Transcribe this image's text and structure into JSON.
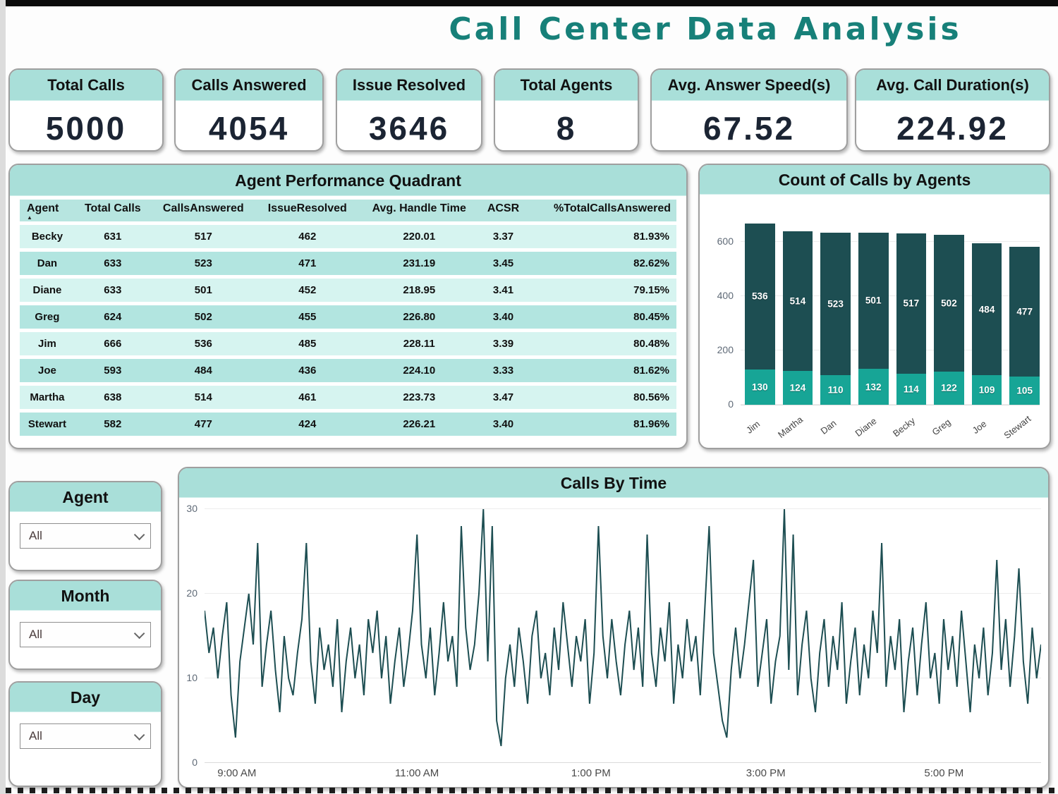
{
  "title": "Call Center Data Analysis",
  "kpis": [
    {
      "label": "Total Calls",
      "value": "5000"
    },
    {
      "label": "Calls Answered",
      "value": "4054"
    },
    {
      "label": "Issue Resolved",
      "value": "3646"
    },
    {
      "label": "Total Agents",
      "value": "8"
    },
    {
      "label": "Avg. Answer Speed(s)",
      "value": "67.52"
    },
    {
      "label": "Avg. Call Duration(s)",
      "value": "224.92"
    }
  ],
  "table": {
    "title": "Agent Performance Quadrant",
    "columns": [
      "Agent",
      "Total Calls",
      "CallsAnswered",
      "IssueResolved",
      "Avg. Handle Time",
      "ACSR",
      "%TotalCallsAnswered"
    ],
    "sort_column": "Agent",
    "sort_indicator": "▲",
    "rows": [
      [
        "Becky",
        "631",
        "517",
        "462",
        "220.01",
        "3.37",
        "81.93%"
      ],
      [
        "Dan",
        "633",
        "523",
        "471",
        "231.19",
        "3.45",
        "82.62%"
      ],
      [
        "Diane",
        "633",
        "501",
        "452",
        "218.95",
        "3.41",
        "79.15%"
      ],
      [
        "Greg",
        "624",
        "502",
        "455",
        "226.80",
        "3.40",
        "80.45%"
      ],
      [
        "Jim",
        "666",
        "536",
        "485",
        "228.11",
        "3.39",
        "80.48%"
      ],
      [
        "Joe",
        "593",
        "484",
        "436",
        "224.10",
        "3.33",
        "81.62%"
      ],
      [
        "Martha",
        "638",
        "514",
        "461",
        "223.73",
        "3.47",
        "80.56%"
      ],
      [
        "Stewart",
        "582",
        "477",
        "424",
        "226.21",
        "3.40",
        "81.96%"
      ]
    ]
  },
  "filters": [
    {
      "label": "Agent",
      "value": "All"
    },
    {
      "label": "Month",
      "value": "All"
    },
    {
      "label": "Day",
      "value": "All"
    }
  ],
  "colors": {
    "band_teal": "#a9dfd9",
    "bar_dark": "#1d4e52",
    "bar_teal": "#17a596",
    "title_teal": "#178079",
    "row_light": "#d6f4f0",
    "row_dark": "#b2e5e0"
  },
  "chart_data": [
    {
      "type": "bar",
      "title": "Count of Calls by Agents",
      "categories": [
        "Jim",
        "Martha",
        "Dan",
        "Diane",
        "Becky",
        "Greg",
        "Joe",
        "Stewart"
      ],
      "series": [
        {
          "name": "calls-answered-segment",
          "color": "#1d4e52",
          "values": [
            536,
            514,
            523,
            501,
            517,
            502,
            484,
            477
          ]
        },
        {
          "name": "calls-unanswered-segment",
          "color": "#17a596",
          "values": [
            130,
            124,
            110,
            132,
            114,
            122,
            109,
            105
          ]
        }
      ],
      "stacked": true,
      "ylim": [
        0,
        700
      ],
      "yticks": [
        0,
        200,
        400,
        600
      ],
      "grid": true,
      "legend_position": "none"
    },
    {
      "type": "line",
      "title": "Calls By Time",
      "xlabel": "",
      "ylabel": "",
      "ylim": [
        0,
        30
      ],
      "yticks": [
        0,
        10,
        20,
        30
      ],
      "x_ticks": [
        {
          "label": "9:00 AM",
          "pos_pct": 2.1
        },
        {
          "label": "11:00 AM",
          "pos_pct": 23.4
        },
        {
          "label": "1:00 PM",
          "pos_pct": 44.4
        },
        {
          "label": "3:00 PM",
          "pos_pct": 65.3
        },
        {
          "label": "5:00 PM",
          "pos_pct": 86.6
        }
      ],
      "grid": true,
      "values": [
        18,
        13,
        16,
        10,
        15,
        19,
        8,
        3,
        12,
        16,
        20,
        14,
        26,
        9,
        14,
        18,
        11,
        6,
        15,
        10,
        8,
        13,
        17,
        26,
        12,
        7,
        16,
        11,
        14,
        9,
        17,
        6,
        12,
        16,
        10,
        14,
        8,
        17,
        13,
        18,
        10,
        15,
        7,
        12,
        16,
        9,
        13,
        18,
        27,
        14,
        10,
        16,
        8,
        13,
        19,
        12,
        15,
        9,
        28,
        16,
        11,
        14,
        20,
        30,
        12,
        28,
        5,
        2,
        10,
        14,
        9,
        16,
        12,
        7,
        15,
        18,
        10,
        13,
        8,
        16,
        11,
        19,
        14,
        9,
        15,
        12,
        17,
        7,
        13,
        28,
        15,
        10,
        17,
        12,
        8,
        14,
        18,
        11,
        16,
        9,
        27,
        13,
        9,
        16,
        12,
        19,
        7,
        14,
        10,
        17,
        12,
        15,
        8,
        18,
        28,
        13,
        9,
        5,
        3,
        11,
        16,
        10,
        14,
        19,
        24,
        9,
        13,
        17,
        7,
        12,
        15,
        30,
        11,
        27,
        8,
        14,
        18,
        10,
        6,
        13,
        17,
        9,
        15,
        11,
        19,
        7,
        12,
        16,
        8,
        14,
        10,
        18,
        13,
        26,
        9,
        15,
        11,
        17,
        6,
        12,
        16,
        8,
        14,
        19,
        10,
        13,
        7,
        17,
        11,
        15,
        9,
        18,
        12,
        6,
        14,
        10,
        16,
        8,
        13,
        24,
        11,
        17,
        9,
        15,
        23,
        12,
        7,
        16,
        10,
        14
      ]
    }
  ]
}
